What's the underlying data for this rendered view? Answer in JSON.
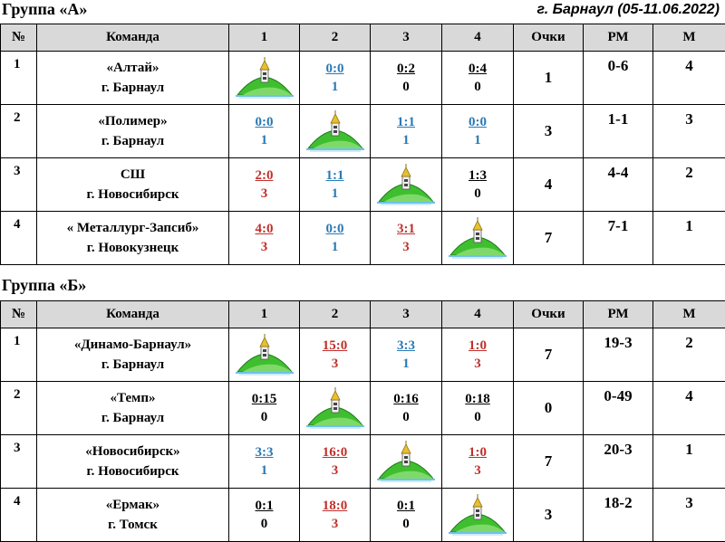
{
  "header": {
    "group_a_title": "Группа «А»",
    "city_date": "г. Барнаул (05-11.06.2022)",
    "group_b_title": "Группа «Б»"
  },
  "columns": [
    "№",
    "Команда",
    "1",
    "2",
    "3",
    "4",
    "Очки",
    "РМ",
    "М"
  ],
  "colors": {
    "win": "#c0302c",
    "draw": "#2a79b4",
    "loss": "#000000",
    "header_bg": "#d9d9d9"
  },
  "group_a": {
    "rows": [
      {
        "num": "1",
        "team": "«Алтай»",
        "city": "г. Барнаул",
        "cells": [
          null,
          {
            "score": "0:0",
            "pts": "1",
            "r": "draw"
          },
          {
            "score": "0:2",
            "pts": "0",
            "r": "loss"
          },
          {
            "score": "0:4",
            "pts": "0",
            "r": "loss"
          }
        ],
        "points": "1",
        "rm": "0-6",
        "place": "4"
      },
      {
        "num": "2",
        "team": "«Полимер»",
        "city": "г. Барнаул",
        "cells": [
          {
            "score": "0:0",
            "pts": "1",
            "r": "draw"
          },
          null,
          {
            "score": "1:1",
            "pts": "1",
            "r": "draw"
          },
          {
            "score": "0:0",
            "pts": "1",
            "r": "draw"
          }
        ],
        "points": "3",
        "rm": "1-1",
        "place": "3"
      },
      {
        "num": "3",
        "team": "СШ",
        "city": "г. Новосибирск",
        "cells": [
          {
            "score": "2:0",
            "pts": "3",
            "r": "win"
          },
          {
            "score": "1:1",
            "pts": "1",
            "r": "draw"
          },
          null,
          {
            "score": "1:3",
            "pts": "0",
            "r": "loss"
          }
        ],
        "points": "4",
        "rm": "4-4",
        "place": "2"
      },
      {
        "num": "4",
        "team": "« Металлург-Запсиб»",
        "city": "г. Новокузнецк",
        "cells": [
          {
            "score": "4:0",
            "pts": "3",
            "r": "win"
          },
          {
            "score": "0:0",
            "pts": "1",
            "r": "draw"
          },
          {
            "score": "3:1",
            "pts": "3",
            "r": "win"
          },
          null
        ],
        "points": "7",
        "rm": "7-1",
        "place": "1"
      }
    ]
  },
  "group_b": {
    "rows": [
      {
        "num": "1",
        "team": "«Динамо-Барнаул»",
        "city": "г. Барнаул",
        "cells": [
          null,
          {
            "score": "15:0",
            "pts": "3",
            "r": "win"
          },
          {
            "score": "3:3",
            "pts": "1",
            "r": "draw"
          },
          {
            "score": "1:0",
            "pts": "3",
            "r": "win"
          }
        ],
        "points": "7",
        "rm": "19-3",
        "place": "2"
      },
      {
        "num": "2",
        "team": "«Темп»",
        "city": "г. Барнаул",
        "cells": [
          {
            "score": "0:15",
            "pts": "0",
            "r": "loss"
          },
          null,
          {
            "score": "0:16",
            "pts": "0",
            "r": "loss"
          },
          {
            "score": "0:18",
            "pts": "0",
            "r": "loss"
          }
        ],
        "points": "0",
        "rm": "0-49",
        "place": "4"
      },
      {
        "num": "3",
        "team": "«Новосибирск»",
        "city": "г. Новосибирск",
        "cells": [
          {
            "score": "3:3",
            "pts": "1",
            "r": "draw"
          },
          {
            "score": "16:0",
            "pts": "3",
            "r": "win"
          },
          null,
          {
            "score": "1:0",
            "pts": "3",
            "r": "win"
          }
        ],
        "points": "7",
        "rm": "20-3",
        "place": "1"
      },
      {
        "num": "4",
        "team": "«Ермак»",
        "city": "г. Томск",
        "cells": [
          {
            "score": "0:1",
            "pts": "0",
            "r": "loss"
          },
          {
            "score": "18:0",
            "pts": "3",
            "r": "win"
          },
          {
            "score": "0:1",
            "pts": "0",
            "r": "loss"
          },
          null
        ],
        "points": "3",
        "rm": "18-2",
        "place": "3"
      }
    ]
  },
  "icons": {
    "self_match_cell": "hill-tower-icon"
  }
}
